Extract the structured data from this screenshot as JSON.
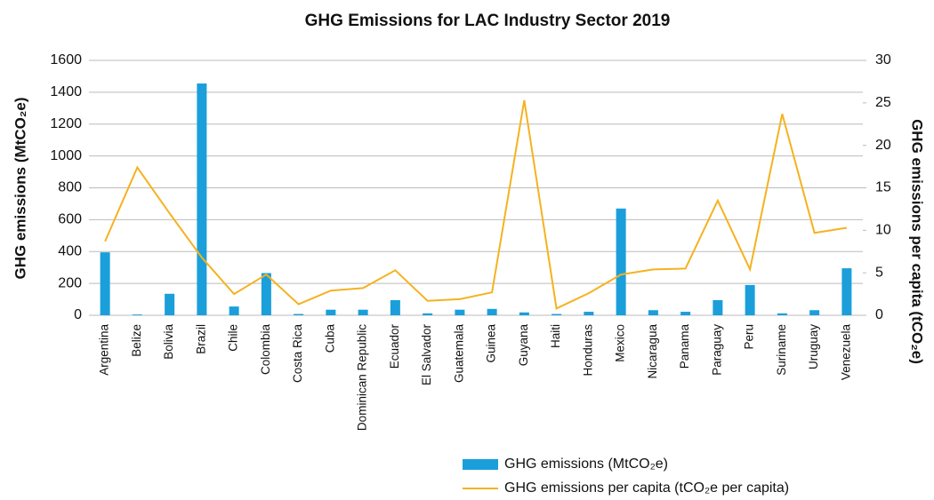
{
  "chart_data": {
    "type": "bar-line",
    "title": "GHG Emissions for LAC Industry Sector 2019",
    "y_label": "GHG emissions  (MtCO₂e)",
    "y2_label": "GHG emissions per capita (tCO₂e)",
    "categories": [
      "Argentina",
      "Belize",
      "Bolivia",
      "Brazil",
      "Chile",
      "Colombia",
      "Costa Rica",
      "Cuba",
      "Dominican Republic",
      "Ecuador",
      "El Salvador",
      "Guatemala",
      "Guinea",
      "Guyana",
      "Haiti",
      "Honduras",
      "Mexico",
      "Nicaragua",
      "Panama",
      "Paraguay",
      "Peru",
      "Suriname",
      "Uruguay",
      "Venezuela"
    ],
    "series": [
      {
        "name": "GHG emissions (MtCO₂e)",
        "type": "bar",
        "axis": "y",
        "color": "#1a9fdb",
        "values": [
          395,
          5,
          135,
          1455,
          55,
          265,
          8,
          35,
          35,
          95,
          12,
          35,
          40,
          18,
          8,
          22,
          670,
          32,
          22,
          95,
          190,
          12,
          32,
          295
        ]
      },
      {
        "name": "GHG emissions per capita (tCO₂e per capita)",
        "type": "line",
        "axis": "y2",
        "color": "#f5b21f",
        "values": [
          8.7,
          17.4,
          12,
          6.8,
          2.5,
          4.8,
          1.3,
          2.9,
          3.2,
          5.3,
          1.7,
          1.9,
          2.7,
          25.3,
          0.8,
          2.6,
          4.8,
          5.4,
          5.5,
          13.5,
          5.4,
          23.7,
          9.7,
          10.3
        ]
      }
    ],
    "ylim": [
      0,
      1600
    ],
    "yticks": [
      0,
      200,
      400,
      600,
      800,
      1000,
      1200,
      1400,
      1600
    ],
    "y2lim": [
      0,
      30
    ],
    "y2ticks": [
      0,
      5,
      10,
      15,
      20,
      25,
      30
    ],
    "grid": true
  }
}
